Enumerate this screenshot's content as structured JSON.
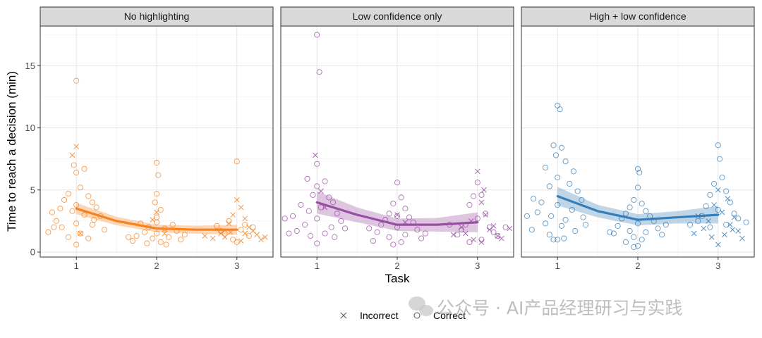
{
  "chart_data": {
    "type": "scatter",
    "xlabel": "Task",
    "ylabel": "Time to reach a decision (min)",
    "x_ticks": [
      "1",
      "2",
      "3"
    ],
    "y_ticks": [
      "0",
      "5",
      "10",
      "15"
    ],
    "xlim": [
      0.55,
      3.45
    ],
    "ylim": [
      -0.4,
      18.2
    ],
    "grid": true,
    "legend_position": "bottom",
    "legend": [
      {
        "label": "Incorrect",
        "marker": "x"
      },
      {
        "label": "Correct",
        "marker": "o"
      }
    ],
    "panels": [
      {
        "title": "No highlighting",
        "color": "#f7811e",
        "trend": [
          [
            1,
            3.5
          ],
          [
            1.5,
            2.5
          ],
          [
            2,
            1.9
          ],
          [
            2.5,
            1.8
          ],
          [
            3,
            1.8
          ]
        ],
        "band_halfwidth": [
          0.45,
          0.35,
          0.3,
          0.32,
          0.4
        ],
        "points": {
          "correct": [
            [
              1.0,
              13.8
            ],
            [
              1.0,
              6.4
            ],
            [
              1.1,
              6.7
            ],
            [
              0.97,
              7.0
            ],
            [
              1.05,
              5.2
            ],
            [
              0.9,
              4.7
            ],
            [
              1.15,
              4.5
            ],
            [
              1.2,
              4.0
            ],
            [
              0.85,
              4.2
            ],
            [
              1.0,
              3.8
            ],
            [
              1.25,
              3.6
            ],
            [
              0.8,
              3.5
            ],
            [
              0.95,
              3.3
            ],
            [
              1.1,
              3.0
            ],
            [
              0.7,
              3.2
            ],
            [
              1.3,
              2.9
            ],
            [
              0.75,
              2.5
            ],
            [
              1.0,
              2.3
            ],
            [
              1.2,
              2.2
            ],
            [
              0.82,
              2.0
            ],
            [
              1.35,
              1.8
            ],
            [
              0.65,
              1.6
            ],
            [
              1.05,
              1.5
            ],
            [
              0.9,
              1.2
            ],
            [
              1.15,
              1.1
            ],
            [
              1.0,
              0.6
            ],
            [
              0.72,
              2.0
            ],
            [
              1.22,
              2.6
            ],
            [
              2.0,
              7.2
            ],
            [
              2.02,
              6.2
            ],
            [
              2.0,
              4.7
            ],
            [
              1.98,
              4.0
            ],
            [
              2.05,
              3.4
            ],
            [
              2.0,
              2.8
            ],
            [
              1.8,
              2.3
            ],
            [
              2.2,
              2.2
            ],
            [
              1.9,
              2.0
            ],
            [
              2.1,
              1.9
            ],
            [
              1.85,
              1.6
            ],
            [
              2.25,
              1.7
            ],
            [
              2.0,
              1.5
            ],
            [
              1.75,
              1.3
            ],
            [
              2.15,
              1.2
            ],
            [
              1.95,
              1.1
            ],
            [
              2.3,
              1.0
            ],
            [
              1.7,
              0.9
            ],
            [
              2.05,
              0.8
            ],
            [
              1.88,
              0.7
            ],
            [
              2.12,
              0.6
            ],
            [
              2.35,
              1.4
            ],
            [
              1.65,
              1.2
            ],
            [
              2.0,
              2.4
            ],
            [
              3.0,
              7.3
            ],
            [
              2.9,
              2.5
            ],
            [
              3.1,
              2.2
            ],
            [
              3.05,
              1.8
            ],
            [
              2.85,
              1.5
            ],
            [
              3.15,
              1.3
            ],
            [
              2.95,
              1.0
            ],
            [
              3.2,
              2.0
            ],
            [
              2.8,
              1.7
            ],
            [
              3.0,
              0.8
            ],
            [
              2.75,
              2.1
            ]
          ],
          "incorrect": [
            [
              1.0,
              8.5
            ],
            [
              0.95,
              7.8
            ],
            [
              1.05,
              1.5
            ],
            [
              2.0,
              3.2
            ],
            [
              1.95,
              2.6
            ],
            [
              2.1,
              1.5
            ],
            [
              3.0,
              4.2
            ],
            [
              3.05,
              3.6
            ],
            [
              2.95,
              3.0
            ],
            [
              3.1,
              2.7
            ],
            [
              2.9,
              2.3
            ],
            [
              3.15,
              2.0
            ],
            [
              3.2,
              1.7
            ],
            [
              2.8,
              1.5
            ],
            [
              3.25,
              1.4
            ],
            [
              2.85,
              1.2
            ],
            [
              3.3,
              1.0
            ],
            [
              2.7,
              1.1
            ],
            [
              3.05,
              0.9
            ],
            [
              2.6,
              1.3
            ],
            [
              3.35,
              1.2
            ],
            [
              3.1,
              1.5
            ],
            [
              2.92,
              1.6
            ]
          ]
        }
      },
      {
        "title": "Low confidence only",
        "color": "#984ea3",
        "trend": [
          [
            1,
            4.0
          ],
          [
            1.5,
            3.0
          ],
          [
            2,
            2.2
          ],
          [
            2.5,
            2.2
          ],
          [
            3,
            2.4
          ]
        ],
        "band_halfwidth": [
          0.9,
          0.6,
          0.5,
          0.55,
          0.8
        ],
        "points": {
          "correct": [
            [
              1.0,
              17.5
            ],
            [
              1.03,
              14.5
            ],
            [
              1.0,
              7.1
            ],
            [
              0.88,
              5.9
            ],
            [
              1.1,
              5.7
            ],
            [
              1.0,
              5.3
            ],
            [
              0.95,
              4.6
            ],
            [
              1.15,
              4.4
            ],
            [
              1.2,
              4.0
            ],
            [
              0.8,
              3.8
            ],
            [
              1.05,
              3.6
            ],
            [
              0.9,
              3.3
            ],
            [
              1.25,
              3.1
            ],
            [
              0.7,
              2.9
            ],
            [
              1.0,
              2.7
            ],
            [
              1.3,
              2.5
            ],
            [
              0.6,
              2.7
            ],
            [
              0.85,
              2.2
            ],
            [
              1.18,
              2.0
            ],
            [
              0.75,
              1.7
            ],
            [
              1.1,
              1.5
            ],
            [
              0.92,
              1.3
            ],
            [
              1.22,
              1.2
            ],
            [
              1.0,
              0.7
            ],
            [
              0.65,
              1.5
            ],
            [
              1.35,
              1.9
            ],
            [
              2.0,
              5.6
            ],
            [
              2.05,
              4.4
            ],
            [
              1.95,
              3.9
            ],
            [
              2.1,
              3.5
            ],
            [
              1.9,
              3.1
            ],
            [
              2.15,
              2.8
            ],
            [
              1.85,
              2.6
            ],
            [
              2.2,
              2.4
            ],
            [
              1.8,
              2.2
            ],
            [
              2.0,
              2.0
            ],
            [
              2.25,
              1.8
            ],
            [
              1.75,
              1.6
            ],
            [
              2.1,
              1.4
            ],
            [
              1.9,
              1.2
            ],
            [
              2.3,
              1.1
            ],
            [
              1.7,
              0.9
            ],
            [
              2.05,
              0.8
            ],
            [
              1.95,
              0.6
            ],
            [
              2.35,
              1.5
            ],
            [
              1.65,
              1.9
            ],
            [
              2.0,
              2.9
            ],
            [
              3.0,
              5.6
            ],
            [
              3.05,
              4.6
            ],
            [
              2.95,
              4.5
            ],
            [
              2.9,
              3.8
            ],
            [
              3.1,
              3.1
            ],
            [
              3.0,
              2.7
            ],
            [
              2.85,
              2.2
            ],
            [
              3.15,
              2.0
            ],
            [
              2.8,
              1.8
            ],
            [
              3.2,
              1.6
            ],
            [
              2.75,
              1.4
            ],
            [
              3.25,
              1.3
            ],
            [
              3.05,
              1.0
            ],
            [
              2.9,
              0.8
            ],
            [
              3.35,
              2.0
            ],
            [
              2.65,
              2.2
            ]
          ],
          "incorrect": [
            [
              0.98,
              7.8
            ],
            [
              1.05,
              4.9
            ],
            [
              1.1,
              3.6
            ],
            [
              2.0,
              3.0
            ],
            [
              2.1,
              2.4
            ],
            [
              3.0,
              6.5
            ],
            [
              3.08,
              5.0
            ],
            [
              3.05,
              4.0
            ],
            [
              3.1,
              3.0
            ],
            [
              2.92,
              2.5
            ],
            [
              3.2,
              2.1
            ],
            [
              2.8,
              2.0
            ],
            [
              3.15,
              1.8
            ],
            [
              2.85,
              1.5
            ],
            [
              3.25,
              1.3
            ],
            [
              2.7,
              1.4
            ],
            [
              3.3,
              1.1
            ],
            [
              2.95,
              1.0
            ],
            [
              3.05,
              0.8
            ],
            [
              3.4,
              1.9
            ]
          ]
        }
      },
      {
        "title": "High + low confidence",
        "color": "#377eb8",
        "trend": [
          [
            1,
            4.5
          ],
          [
            1.5,
            3.3
          ],
          [
            2,
            2.6
          ],
          [
            2.5,
            2.8
          ],
          [
            3,
            3.0
          ]
        ],
        "band_halfwidth": [
          0.75,
          0.5,
          0.45,
          0.5,
          0.7
        ],
        "points": {
          "correct": [
            [
              1.0,
              11.8
            ],
            [
              1.03,
              11.5
            ],
            [
              0.95,
              8.6
            ],
            [
              1.05,
              8.4
            ],
            [
              0.98,
              7.8
            ],
            [
              1.1,
              7.3
            ],
            [
              0.85,
              6.8
            ],
            [
              1.2,
              6.5
            ],
            [
              1.0,
              6.0
            ],
            [
              1.15,
              5.5
            ],
            [
              0.9,
              5.3
            ],
            [
              1.25,
              4.9
            ],
            [
              0.7,
              4.3
            ],
            [
              1.3,
              4.2
            ],
            [
              0.8,
              4.0
            ],
            [
              1.0,
              3.8
            ],
            [
              1.18,
              3.4
            ],
            [
              0.75,
              3.2
            ],
            [
              0.92,
              2.9
            ],
            [
              1.32,
              2.8
            ],
            [
              0.62,
              2.9
            ],
            [
              1.1,
              2.6
            ],
            [
              0.85,
              2.3
            ],
            [
              1.05,
              2.1
            ],
            [
              0.68,
              1.8
            ],
            [
              1.22,
              1.7
            ],
            [
              0.9,
              1.4
            ],
            [
              1.0,
              1.0
            ],
            [
              1.08,
              1.1
            ],
            [
              0.95,
              1.0
            ],
            [
              1.35,
              2.2
            ],
            [
              2.0,
              6.7
            ],
            [
              2.02,
              6.4
            ],
            [
              2.0,
              5.2
            ],
            [
              1.95,
              4.2
            ],
            [
              2.05,
              3.9
            ],
            [
              1.9,
              3.6
            ],
            [
              2.1,
              3.3
            ],
            [
              1.85,
              3.1
            ],
            [
              2.15,
              2.9
            ],
            [
              1.8,
              2.7
            ],
            [
              2.2,
              2.5
            ],
            [
              2.0,
              2.3
            ],
            [
              1.75,
              2.1
            ],
            [
              2.25,
              1.9
            ],
            [
              1.9,
              1.7
            ],
            [
              2.1,
              1.6
            ],
            [
              1.7,
              1.5
            ],
            [
              2.3,
              1.4
            ],
            [
              1.95,
              1.2
            ],
            [
              2.05,
              1.0
            ],
            [
              1.85,
              0.8
            ],
            [
              2.0,
              0.5
            ],
            [
              2.35,
              2.2
            ],
            [
              1.65,
              1.6
            ],
            [
              1.95,
              0.4
            ],
            [
              3.0,
              8.6
            ],
            [
              3.02,
              7.5
            ],
            [
              3.05,
              6.0
            ],
            [
              2.95,
              5.5
            ],
            [
              3.1,
              4.9
            ],
            [
              2.9,
              4.6
            ],
            [
              3.15,
              4.0
            ],
            [
              2.85,
              3.7
            ],
            [
              3.0,
              3.4
            ],
            [
              3.2,
              3.1
            ],
            [
              2.8,
              2.9
            ],
            [
              3.25,
              2.7
            ],
            [
              2.75,
              2.5
            ],
            [
              3.1,
              2.2
            ],
            [
              2.9,
              2.0
            ],
            [
              3.35,
              2.4
            ],
            [
              2.65,
              2.2
            ]
          ],
          "incorrect": [
            [
              3.0,
              5.0
            ],
            [
              3.12,
              4.3
            ],
            [
              2.95,
              3.8
            ],
            [
              3.05,
              3.2
            ],
            [
              3.2,
              2.8
            ],
            [
              2.88,
              2.5
            ],
            [
              3.15,
              2.2
            ],
            [
              2.82,
              1.9
            ],
            [
              3.25,
              1.7
            ],
            [
              2.7,
              1.5
            ],
            [
              3.08,
              1.4
            ],
            [
              2.92,
              1.2
            ],
            [
              3.3,
              1.1
            ],
            [
              3.0,
              0.6
            ],
            [
              3.18,
              1.8
            ],
            [
              2.75,
              2.9
            ]
          ]
        }
      }
    ]
  },
  "watermark": "公众号 · AI产品经理研习与实践",
  "icons": {
    "watermark_logo": "wechat-icon"
  }
}
